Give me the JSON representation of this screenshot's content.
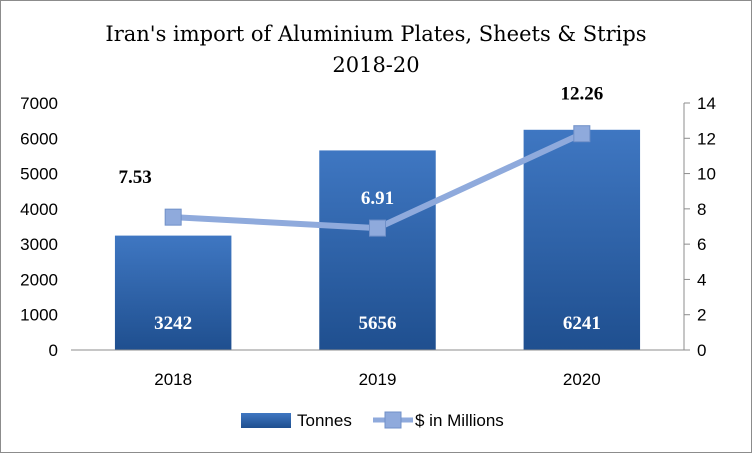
{
  "chart_data": {
    "type": "bar",
    "title_line1": "Iran's import of Aluminium Plates, Sheets & Strips",
    "title_line2": "2018-20",
    "categories": [
      "2018",
      "2019",
      "2020"
    ],
    "series": [
      {
        "name": "Tonnes",
        "kind": "bar",
        "axis": "left",
        "values": [
          3242,
          5656,
          6241
        ],
        "color": "#2e5e9e"
      },
      {
        "name": "$ in Millions",
        "kind": "line",
        "axis": "right",
        "values": [
          7.53,
          6.91,
          12.26
        ],
        "color": "#8faadc"
      }
    ],
    "y_left": {
      "min": 0,
      "max": 7000,
      "ticks": [
        0,
        1000,
        2000,
        3000,
        4000,
        5000,
        6000,
        7000
      ]
    },
    "y_right": {
      "min": 0,
      "max": 14,
      "ticks": [
        0,
        2,
        4,
        6,
        8,
        10,
        12,
        14
      ]
    },
    "grid": false,
    "legend_position": "bottom",
    "line_label_colors": [
      "#000000",
      "#ffffff",
      "#000000"
    ]
  }
}
